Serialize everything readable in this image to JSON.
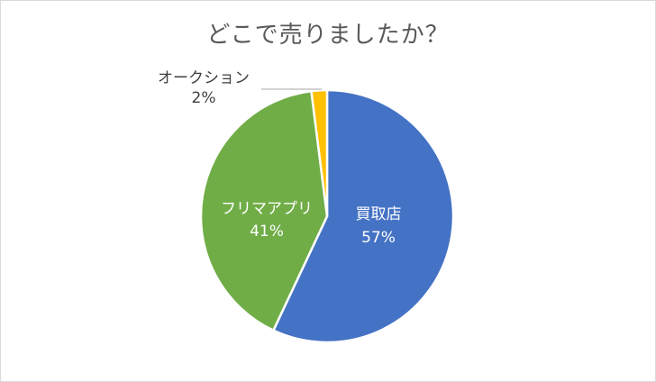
{
  "chart_data": {
    "type": "pie",
    "title": "どこで売りましたか？",
    "categories": [
      "買取店",
      "フリマアプリ",
      "オークション"
    ],
    "values": [
      57,
      41,
      2
    ],
    "value_labels": [
      "57%",
      "41%",
      "2%"
    ],
    "colors": [
      "#4472C4",
      "#70AD47",
      "#FFC000"
    ],
    "label_colors": [
      "#ffffff",
      "#ffffff",
      "#404040"
    ],
    "start_angle_deg": 0,
    "direction": "clockwise",
    "legend": "none",
    "data_labels": "category and percent"
  }
}
